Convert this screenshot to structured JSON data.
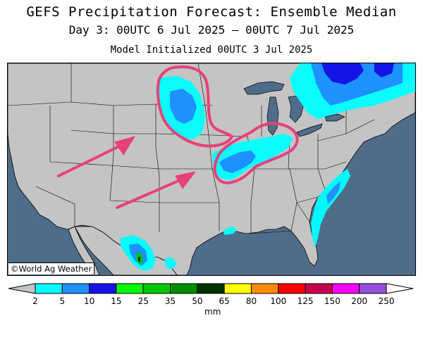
{
  "header": {
    "title": "GEFS Precipitation Forecast: Ensemble Median",
    "subtitle": "Day 3: 00UTC 6 Jul 2025 — 00UTC 7 Jul 2025",
    "init": "Model Initialized 00UTC 3 Jul 2025"
  },
  "map": {
    "credit": "©World Ag Weather",
    "ocean_color": "#4f6d8a",
    "land_color": "#c4c4c4",
    "annotation_color": "#e8407a"
  },
  "colorbar": {
    "unit": "mm",
    "ticks": [
      "2",
      "5",
      "10",
      "15",
      "25",
      "35",
      "50",
      "65",
      "80",
      "100",
      "125",
      "150",
      "200",
      "250"
    ],
    "colors": [
      "#00ffff",
      "#1e90ff",
      "#1414e6",
      "#00ff00",
      "#00c800",
      "#008c00",
      "#003200",
      "#ffff00",
      "#ff8c00",
      "#ff0000",
      "#c80050",
      "#ff00ff",
      "#9650dc"
    ]
  }
}
